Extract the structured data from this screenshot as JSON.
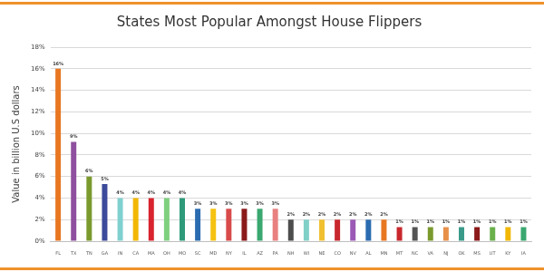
{
  "chart_data": {
    "type": "bar",
    "title": "States Most Popular Amongst House Flippers",
    "y_label": "Value in billion U.S dollars",
    "categories": [
      "FL",
      "TX",
      "TN",
      "GA",
      "IN",
      "CA",
      "MA",
      "OH",
      "MO",
      "SC",
      "MD",
      "NY",
      "IL",
      "AZ",
      "PA",
      "NH",
      "WI",
      "NE",
      "CO",
      "NV",
      "AL",
      "MN",
      "MT",
      "NC",
      "VA",
      "NJ",
      "OK",
      "MS",
      "UT",
      "KY",
      "IA"
    ],
    "values": [
      16,
      9.2,
      6,
      5.3,
      4,
      4,
      4,
      4,
      4,
      3,
      3,
      3,
      3,
      3,
      3,
      2,
      2,
      2,
      2,
      2,
      2,
      2,
      1.3,
      1.3,
      1.3,
      1.3,
      1.3,
      1.3,
      1.3,
      1.3,
      1.3
    ],
    "value_labels": [
      "16%",
      "9%",
      "6%",
      "5%",
      "4%",
      "4%",
      "4%",
      "4%",
      "4%",
      "3%",
      "3%",
      "3%",
      "3%",
      "3%",
      "3%",
      "2%",
      "2%",
      "2%",
      "2%",
      "2%",
      "2%",
      "2%",
      "1%",
      "1%",
      "1%",
      "1%",
      "1%",
      "1%",
      "1%",
      "1%",
      "1%"
    ],
    "colors": [
      "#e87722",
      "#8e4f9e",
      "#7a9a2e",
      "#3b4a9a",
      "#7fd1cf",
      "#f2b705",
      "#d9232e",
      "#7ed07e",
      "#2e9a7a",
      "#2b6cb0",
      "#f5c211",
      "#d94a4a",
      "#8b1a1a",
      "#3aa870",
      "#e88080",
      "#4d4d4d",
      "#80d0c8",
      "#f0c030",
      "#c8282d",
      "#9b59b6",
      "#2b6cb0",
      "#e87722",
      "#c8282d",
      "#555555",
      "#7a9a2e",
      "#e8904a",
      "#3a9a8a",
      "#8b1a1a",
      "#6ab04c",
      "#f2b705",
      "#3aa870"
    ],
    "ylim": [
      0,
      18
    ],
    "yticks": [
      {
        "value": 0,
        "label": "0%"
      },
      {
        "value": 2,
        "label": "2%"
      },
      {
        "value": 4,
        "label": "4%"
      },
      {
        "value": 6,
        "label": "6%"
      },
      {
        "value": 8,
        "label": "8%"
      },
      {
        "value": 10,
        "label": "10%"
      },
      {
        "value": 12,
        "label": "12%"
      },
      {
        "value": 14,
        "label": "14%"
      },
      {
        "value": 16,
        "label": "16%"
      },
      {
        "value": 18,
        "label": "18%"
      }
    ],
    "grid": true,
    "data_labels": true
  }
}
